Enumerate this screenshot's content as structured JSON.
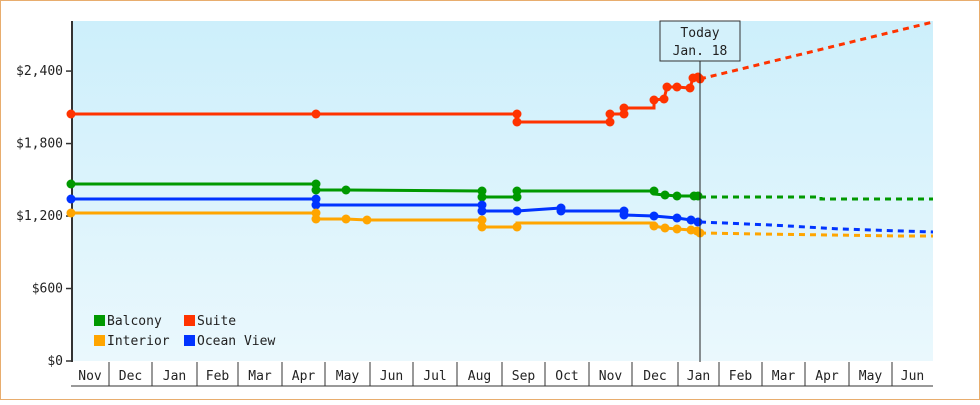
{
  "chart_data": {
    "type": "line",
    "title": "",
    "xlabel": "",
    "ylabel": "",
    "ylim": [
      0,
      2800
    ],
    "y_ticks": [
      {
        "value": 0,
        "label": "$0"
      },
      {
        "value": 600,
        "label": "$600"
      },
      {
        "value": 1200,
        "label": "$1,200"
      },
      {
        "value": 1800,
        "label": "$1,800"
      },
      {
        "value": 2400,
        "label": "$2,400"
      }
    ],
    "months": [
      "Nov",
      "Dec",
      "Jan",
      "Feb",
      "Mar",
      "Apr",
      "May",
      "Jun",
      "Jul",
      "Aug",
      "Sep",
      "Oct",
      "Nov",
      "Dec",
      "Jan",
      "Feb",
      "Mar",
      "Apr",
      "May",
      "Jun"
    ],
    "grid": false,
    "legend_position": "bottom-left inside",
    "today_marker": {
      "line1": "Today",
      "line2": "Jan. 18"
    },
    "series": [
      {
        "name": "Balcony",
        "color": "#009900",
        "points": [
          [
            "Nov start",
            1470
          ],
          [
            "Apr",
            1470
          ],
          [
            "Apr",
            1430
          ],
          [
            "May",
            1420
          ],
          [
            "Aug",
            1410
          ],
          [
            "Aug",
            1370
          ],
          [
            "Sep",
            1370
          ],
          [
            "Sep",
            1410
          ],
          [
            "Dec",
            1410
          ],
          [
            "Dec",
            1390
          ],
          [
            "Dec",
            1380
          ],
          [
            "Jan",
            1370
          ],
          [
            "Jan 18",
            1370
          ]
        ],
        "forecast": [
          [
            "Jan 18",
            1370
          ],
          [
            "Apr",
            1370
          ],
          [
            "Apr",
            1350
          ],
          [
            "Jun end",
            1350
          ]
        ]
      },
      {
        "name": "Suite",
        "color": "#ff3300",
        "points": [
          [
            "Nov start",
            2040
          ],
          [
            "Apr",
            2040
          ],
          [
            "Sep",
            2040
          ],
          [
            "Sep",
            1990
          ],
          [
            "Nov",
            1990
          ],
          [
            "Nov",
            2040
          ],
          [
            "Nov",
            2090
          ],
          [
            "Dec",
            2090
          ],
          [
            "Dec",
            2150
          ],
          [
            "Dec",
            2270
          ],
          [
            "Jan",
            2270
          ],
          [
            "Jan",
            2350
          ],
          [
            "Jan 18",
            2330
          ]
        ],
        "forecast": [
          [
            "Jan 18",
            2330
          ],
          [
            "Jun end",
            2820
          ]
        ]
      },
      {
        "name": "Interior",
        "color": "#ffa500",
        "points": [
          [
            "Nov start",
            1220
          ],
          [
            "Apr",
            1220
          ],
          [
            "Apr",
            1180
          ],
          [
            "May",
            1170
          ],
          [
            "May",
            1160
          ],
          [
            "Aug",
            1160
          ],
          [
            "Aug",
            1110
          ],
          [
            "Sep",
            1110
          ],
          [
            "Sep",
            1140
          ],
          [
            "Dec",
            1140
          ],
          [
            "Dec",
            1110
          ],
          [
            "Dec",
            1100
          ],
          [
            "Jan",
            1090
          ],
          [
            "Jan",
            1080
          ],
          [
            "Jan 18",
            1060
          ]
        ],
        "forecast": [
          [
            "Jan 18",
            1060
          ],
          [
            "Apr",
            1050
          ],
          [
            "Jun end",
            1030
          ]
        ]
      },
      {
        "name": "Ocean View",
        "color": "#0033ff",
        "points": [
          [
            "Nov start",
            1340
          ],
          [
            "Apr",
            1340
          ],
          [
            "Apr",
            1300
          ],
          [
            "Aug",
            1300
          ],
          [
            "Aug",
            1250
          ],
          [
            "Oct",
            1250
          ],
          [
            "Oct",
            1240
          ],
          [
            "Nov",
            1240
          ],
          [
            "Nov",
            1200
          ],
          [
            "Dec",
            1200
          ],
          [
            "Jan",
            1180
          ],
          [
            "Jan 18",
            1150
          ]
        ],
        "forecast": [
          [
            "Jan 18",
            1150
          ],
          [
            "Mar",
            1120
          ],
          [
            "Apr",
            1100
          ],
          [
            "Jun end",
            1080
          ]
        ]
      }
    ]
  },
  "legend": {
    "items": [
      {
        "label": "Balcony",
        "color": "#009900"
      },
      {
        "label": "Suite",
        "color": "#ff3300"
      },
      {
        "label": "Interior",
        "color": "#ffa500"
      },
      {
        "label": "Ocean View",
        "color": "#0033ff"
      }
    ]
  },
  "colors": {
    "plot_bg_top": "#cdeffb",
    "plot_bg_bottom": "#eaf8fd",
    "frame_border": "#e8ad6e",
    "axis": "#333333"
  }
}
